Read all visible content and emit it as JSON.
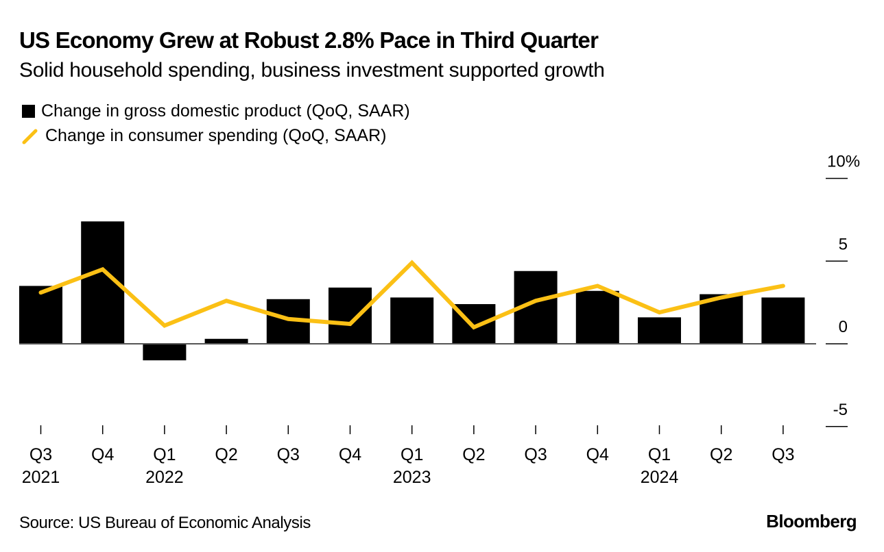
{
  "title": "US Economy Grew at Robust 2.8% Pace in Third Quarter",
  "subtitle": "Solid household spending, business investment supported growth",
  "source": "Source: US Bureau of Economic Analysis",
  "brand": "Bloomberg",
  "colors": {
    "bar": "#000000",
    "line": "#FBC015",
    "axis": "#555555"
  },
  "chart_data": {
    "type": "bar",
    "title": "US Economy Grew at Robust 2.8% Pace in Third Quarter",
    "subtitle": "Solid household spending, business investment supported growth",
    "xlabel": "",
    "ylabel": "",
    "ylim": [
      -5,
      10
    ],
    "yticks": [
      10,
      5,
      0,
      -5
    ],
    "ytick_labels": [
      "10%",
      "5",
      "0",
      "-5"
    ],
    "y_axis_side": "right",
    "grid": false,
    "legend_position": "top-left",
    "categories": [
      "Q3 2021",
      "Q4 2021",
      "Q1 2022",
      "Q2 2022",
      "Q3 2022",
      "Q4 2022",
      "Q1 2023",
      "Q2 2023",
      "Q3 2023",
      "Q4 2023",
      "Q1 2024",
      "Q2 2024",
      "Q3 2024"
    ],
    "xtick_labels": [
      {
        "q": "Q3",
        "year": "2021"
      },
      {
        "q": "Q4",
        "year": ""
      },
      {
        "q": "Q1",
        "year": "2022"
      },
      {
        "q": "Q2",
        "year": ""
      },
      {
        "q": "Q3",
        "year": ""
      },
      {
        "q": "Q4",
        "year": ""
      },
      {
        "q": "Q1",
        "year": "2023"
      },
      {
        "q": "Q2",
        "year": ""
      },
      {
        "q": "Q3",
        "year": ""
      },
      {
        "q": "Q4",
        "year": ""
      },
      {
        "q": "Q1",
        "year": "2024"
      },
      {
        "q": "Q2",
        "year": ""
      },
      {
        "q": "Q3",
        "year": ""
      }
    ],
    "series": [
      {
        "name": "Change in gross domestic product (QoQ, SAAR)",
        "type": "bar",
        "values": [
          3.5,
          7.4,
          -1.0,
          0.3,
          2.7,
          3.4,
          2.8,
          2.4,
          4.4,
          3.2,
          1.6,
          3.0,
          2.8
        ]
      },
      {
        "name": "Change in consumer spending (QoQ, SAAR)",
        "type": "line",
        "values": [
          3.1,
          4.5,
          1.1,
          2.6,
          1.5,
          1.2,
          4.9,
          1.0,
          2.6,
          3.5,
          1.9,
          2.8,
          3.5
        ]
      }
    ]
  }
}
